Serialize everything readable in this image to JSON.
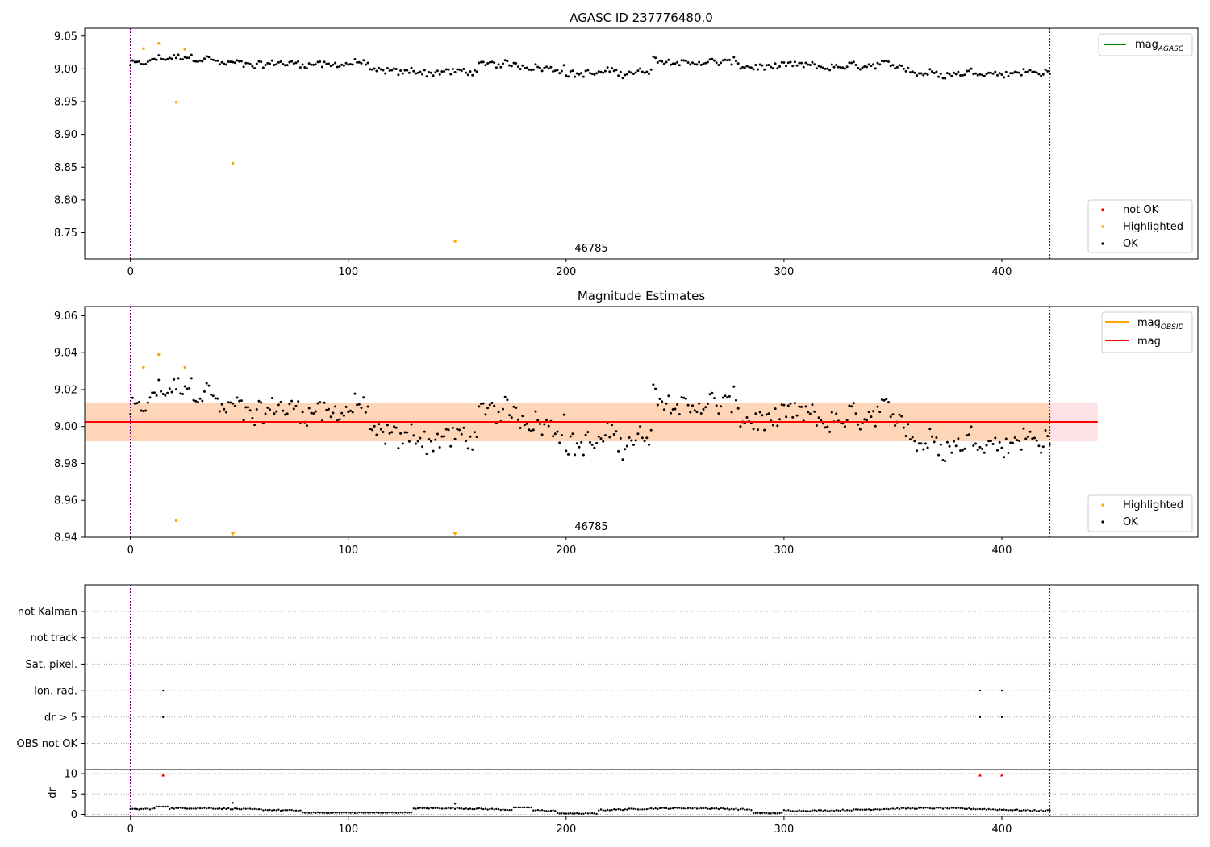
{
  "chart_data": [
    {
      "id": "agasc",
      "type": "scatter",
      "title": "AGASC ID 237776480.0",
      "xlabel": "",
      "ylabel": "",
      "xlim": [
        -21,
        490
      ],
      "ylim": [
        8.71,
        9.062
      ],
      "xticks": [
        0,
        100,
        200,
        300,
        400
      ],
      "yticks": [
        8.75,
        8.8,
        8.85,
        8.9,
        8.95,
        9.0,
        9.05
      ],
      "ytick_labels": [
        "8.75",
        "8.80",
        "8.85",
        "8.90",
        "8.95",
        "9.00",
        "9.05"
      ],
      "vlines": [
        0,
        422
      ],
      "annotation": {
        "text": "46785",
        "x": 211,
        "y": 8.72
      },
      "highlighted_points": [
        {
          "x": 6,
          "y": 9.031
        },
        {
          "x": 13,
          "y": 9.039
        },
        {
          "x": 21,
          "y": 8.949
        },
        {
          "x": 25,
          "y": 9.03
        },
        {
          "x": 47,
          "y": 8.856
        },
        {
          "x": 149,
          "y": 8.737
        }
      ],
      "ok_series": {
        "x_start": 0,
        "x_end": 422,
        "mean": 9.002,
        "spread": 0.011
      },
      "legend_lines": [
        {
          "label": "mag",
          "sub": "AGASC",
          "color": "#008000"
        }
      ],
      "legend_markers": [
        {
          "label": "not OK",
          "color": "#ff0000"
        },
        {
          "label": "Highlighted",
          "color": "#ffa500"
        },
        {
          "label": "OK",
          "color": "#000000"
        }
      ]
    },
    {
      "id": "estimates",
      "type": "scatter",
      "title": "Magnitude Estimates",
      "xlabel": "",
      "ylabel": "",
      "xlim": [
        -21,
        490
      ],
      "ylim": [
        8.94,
        9.065
      ],
      "xticks": [
        0,
        100,
        200,
        300,
        400
      ],
      "yticks": [
        8.94,
        8.96,
        8.98,
        9.0,
        9.02,
        9.04,
        9.06
      ],
      "ytick_labels": [
        "8.94",
        "8.96",
        "8.98",
        "9.00",
        "9.02",
        "9.04",
        "9.06"
      ],
      "vlines": [
        0,
        422
      ],
      "mag_line": 9.0025,
      "mag_band": [
        8.992,
        9.013
      ],
      "band_x_end": 444,
      "annotation": {
        "text": "46785",
        "x": 211,
        "y": 8.945
      },
      "highlighted_points": [
        {
          "x": 6,
          "y": 9.032
        },
        {
          "x": 13,
          "y": 9.039
        },
        {
          "x": 21,
          "y": 8.949
        },
        {
          "x": 25,
          "y": 9.032
        }
      ],
      "clipped_points": [
        {
          "x": 47
        },
        {
          "x": 149
        }
      ],
      "ok_series": {
        "x_start": 0,
        "x_end": 422,
        "mean": 9.002,
        "spread": 0.011
      },
      "legend_lines": [
        {
          "label": "mag",
          "sub": "OBSID",
          "color": "#ffa500"
        },
        {
          "label": "mag",
          "sub": "",
          "color": "#ff0000"
        }
      ],
      "legend_markers": [
        {
          "label": "Highlighted",
          "color": "#ffa500"
        },
        {
          "label": "OK",
          "color": "#000000"
        }
      ]
    },
    {
      "id": "flags",
      "type": "scatter",
      "xlim": [
        -21,
        490
      ],
      "vlines": [
        0,
        422
      ],
      "categories": [
        "not Kalman",
        "not track",
        "Sat. pixel.",
        "Ion. rad.",
        "dr > 5",
        "OBS not OK"
      ],
      "flag_points": [
        {
          "category": "Ion. rad.",
          "x": [
            15,
            390,
            400
          ]
        },
        {
          "category": "dr > 5",
          "x": [
            15,
            390,
            400
          ]
        }
      ]
    },
    {
      "id": "dr",
      "type": "scatter",
      "ylabel": "dr",
      "xlim": [
        -21,
        490
      ],
      "ylim": [
        -0.5,
        11
      ],
      "xticks": [
        0,
        100,
        200,
        300,
        400
      ],
      "yticks": [
        0,
        5,
        10
      ],
      "ytick_labels": [
        "0",
        "5",
        "10"
      ],
      "vlines": [
        0,
        422
      ],
      "red_points": [
        {
          "x": 15,
          "y": 9.7
        },
        {
          "x": 390,
          "y": 9.7
        },
        {
          "x": 400,
          "y": 9.7
        }
      ],
      "outliers": [
        {
          "x": 47,
          "y": 2.8
        },
        {
          "x": 149,
          "y": 2.6
        }
      ],
      "ok_series": {
        "x_start": 0,
        "x_end": 422
      }
    }
  ]
}
